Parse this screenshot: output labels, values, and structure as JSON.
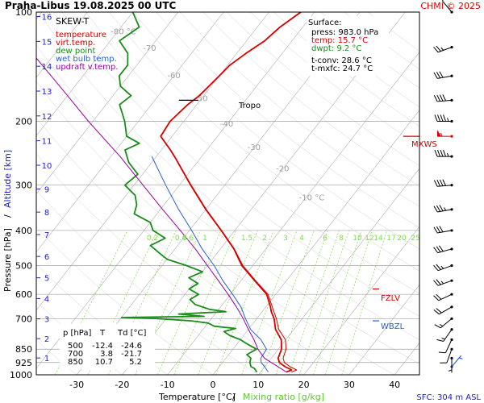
{
  "header": {
    "title": "Praha-Libus    19.08.2025 00 UTC",
    "copyright": "CHMI © 2025"
  },
  "colors": {
    "temperature": "#d40000",
    "dewpoint": "#1a8c1a",
    "wetbulb": "#2a60d0",
    "parcel": "#9a00a0",
    "mixing": "#7fdc4a",
    "isotherm": "#b0b0b0",
    "isobar": "#a0a0a0",
    "altitude": "#2020cc"
  },
  "legend": {
    "title": "SKEW-T",
    "items": [
      {
        "label": "temperature",
        "color": "#d40000"
      },
      {
        "label": "virt.temp.",
        "color": "#d40000"
      },
      {
        "label": "dew point",
        "color": "#1a8c1a"
      },
      {
        "label": "wet bulb temp.",
        "color": "#2a60d0"
      },
      {
        "label": "updraft v.temp.",
        "color": "#9a00a0"
      }
    ]
  },
  "surface": {
    "title": "Surface:",
    "lines": [
      {
        "text": "press: 983.0 hPa",
        "color": "#000000"
      },
      {
        "text": "temp: 15.7 °C",
        "color": "#d40000"
      },
      {
        "text": "dwpt: 9.2 °C",
        "color": "#1a8c1a"
      },
      {
        "text": "t-conv: 28.6 °C",
        "color": "#000000"
      },
      {
        "text": "t-mxfc: 24.7 °C",
        "color": "#000000"
      }
    ]
  },
  "table": {
    "headers": [
      "p [hPa]",
      "T",
      "Td [°C]"
    ],
    "rows": [
      [
        "500",
        "-12.4",
        "-24.6"
      ],
      [
        "700",
        "3.8",
        "-21.7"
      ],
      [
        "850",
        "10.7",
        "5.2"
      ]
    ]
  },
  "axes": {
    "x_label_main": "Temperature [°C]",
    "x_label_sep": "/",
    "x_label_mixing": "Mixing ratio [g/kg]",
    "y_label_main": "Pressure [hPa]",
    "y_label_sep": "/",
    "y_label_alt": "Altitude [km]",
    "sfc_note": "SFC: 304 m ASL",
    "tropo_label": "Tropo",
    "markers": {
      "mxws": "MXWS",
      "fzlv": "FZLV",
      "wbzl": "WBZL"
    }
  },
  "chart_data": {
    "type": "line",
    "title": "SKEW-T",
    "xlabel": "Temperature [°C] / Mixing ratio [g/kg]",
    "ylabel": "Pressure [hPa] / Altitude [km]",
    "xlim": [
      -40,
      45
    ],
    "pressure_range": [
      1000,
      100
    ],
    "pressure_ticks": [
      100,
      200,
      300,
      400,
      500,
      600,
      700,
      850,
      925,
      1000
    ],
    "temperature_ticks": [
      -30,
      -20,
      -10,
      0,
      10,
      20,
      30,
      40
    ],
    "altitude_ticks_km": [
      1,
      2,
      3,
      4,
      5,
      6,
      7,
      8,
      9,
      10,
      11,
      12,
      13,
      14,
      15,
      16
    ],
    "isotherm_labels": [
      {
        "t": -80,
        "label": "-80 °C"
      },
      {
        "t": -70,
        "label": "-70"
      },
      {
        "t": -60,
        "label": "-60"
      },
      {
        "t": -50,
        "label": "-50"
      },
      {
        "t": -40,
        "label": "-40"
      },
      {
        "t": -30,
        "label": "-30"
      },
      {
        "t": -20,
        "label": "-20"
      },
      {
        "t": -10,
        "label": "-10 °C"
      }
    ],
    "mixing_ratio_labels": [
      "0.2",
      "0.4",
      "0.6",
      "1",
      "1.5",
      "2",
      "3",
      "4",
      "6",
      "8",
      "10",
      "12",
      "14",
      "17",
      "20",
      "25"
    ],
    "mixing_ratio_values": [
      0.2,
      0.4,
      0.6,
      1,
      1.5,
      2,
      3,
      4,
      6,
      8,
      10,
      12,
      14,
      17,
      20,
      25
    ],
    "series": [
      {
        "key": "temperature",
        "points": [
          [
            983,
            15.7
          ],
          [
            970,
            16.5
          ],
          [
            950,
            14.5
          ],
          [
            925,
            12.5
          ],
          [
            900,
            11.5
          ],
          [
            850,
            10.7
          ],
          [
            800,
            9
          ],
          [
            750,
            6
          ],
          [
            700,
            3.8
          ],
          [
            670,
            2
          ],
          [
            650,
            1
          ],
          [
            600,
            -2
          ],
          [
            550,
            -7
          ],
          [
            500,
            -12.4
          ],
          [
            450,
            -17
          ],
          [
            400,
            -23
          ],
          [
            350,
            -30
          ],
          [
            300,
            -37.5
          ],
          [
            250,
            -46
          ],
          [
            240,
            -48
          ],
          [
            220,
            -52.5
          ],
          [
            200,
            -53
          ],
          [
            180,
            -52
          ],
          [
            170,
            -51
          ],
          [
            160,
            -50.5
          ],
          [
            150,
            -50
          ],
          [
            140,
            -49.5
          ],
          [
            130,
            -48
          ],
          [
            120,
            -46
          ],
          [
            110,
            -45
          ],
          [
            100,
            -43
          ]
        ]
      },
      {
        "key": "virtual",
        "points": [
          [
            983,
            16.8
          ],
          [
            970,
            17.6
          ],
          [
            950,
            15.6
          ],
          [
            925,
            13.6
          ],
          [
            900,
            12.6
          ],
          [
            850,
            11.7
          ],
          [
            800,
            9.9
          ],
          [
            750,
            6.7
          ],
          [
            700,
            4.3
          ],
          [
            650,
            1.4
          ],
          [
            600,
            -1.7
          ],
          [
            550,
            -6.8
          ],
          [
            500,
            -12.2
          ],
          [
            450,
            -16.9
          ],
          [
            400,
            -22.9
          ],
          [
            350,
            -29.9
          ],
          [
            300,
            -37.4
          ],
          [
            250,
            -46
          ]
        ]
      },
      {
        "key": "dewpoint",
        "points": [
          [
            983,
            9.2
          ],
          [
            960,
            8
          ],
          [
            950,
            7
          ],
          [
            925,
            6
          ],
          [
            900,
            5.5
          ],
          [
            880,
            4
          ],
          [
            850,
            5.2
          ],
          [
            820,
            2
          ],
          [
            800,
            0
          ],
          [
            780,
            -3
          ],
          [
            760,
            -5
          ],
          [
            745,
            -3
          ],
          [
            735,
            -8
          ],
          [
            720,
            -10
          ],
          [
            710,
            -14
          ],
          [
            700,
            -21.7
          ],
          [
            695,
            -30
          ],
          [
            690,
            -12
          ],
          [
            680,
            -18
          ],
          [
            670,
            -8
          ],
          [
            660,
            -12
          ],
          [
            640,
            -16
          ],
          [
            620,
            -18
          ],
          [
            600,
            -17
          ],
          [
            580,
            -20
          ],
          [
            560,
            -19
          ],
          [
            540,
            -22
          ],
          [
            520,
            -20
          ],
          [
            500,
            -24.6
          ],
          [
            480,
            -30
          ],
          [
            460,
            -33
          ],
          [
            440,
            -36
          ],
          [
            420,
            -34
          ],
          [
            400,
            -38
          ],
          [
            380,
            -40
          ],
          [
            360,
            -45
          ],
          [
            340,
            -46
          ],
          [
            320,
            -48
          ],
          [
            300,
            -52
          ],
          [
            280,
            -51
          ],
          [
            260,
            -55
          ],
          [
            240,
            -58
          ],
          [
            230,
            -56
          ],
          [
            220,
            -60
          ],
          [
            200,
            -63
          ],
          [
            180,
            -67
          ],
          [
            170,
            -66
          ],
          [
            160,
            -70
          ],
          [
            150,
            -72
          ],
          [
            140,
            -72
          ],
          [
            130,
            -74
          ],
          [
            120,
            -78
          ],
          [
            110,
            -76
          ],
          [
            100,
            -80
          ]
        ]
      },
      {
        "key": "wetbulb",
        "points": [
          [
            983,
            11.7
          ],
          [
            950,
            10
          ],
          [
            925,
            8.5
          ],
          [
            900,
            7.7
          ],
          [
            850,
            7.4
          ],
          [
            800,
            4.5
          ],
          [
            750,
            0.5
          ],
          [
            700,
            -2.5
          ],
          [
            650,
            -5.5
          ],
          [
            600,
            -9.5
          ],
          [
            550,
            -14
          ],
          [
            500,
            -18.5
          ],
          [
            450,
            -24
          ],
          [
            400,
            -29.5
          ],
          [
            350,
            -36
          ],
          [
            300,
            -43
          ],
          [
            250,
            -51
          ]
        ]
      },
      {
        "key": "parcel",
        "points": [
          [
            983,
            15.7
          ],
          [
            900,
            8.5
          ],
          [
            850,
            5.5
          ],
          [
            800,
            3
          ],
          [
            750,
            0
          ],
          [
            700,
            -3
          ],
          [
            650,
            -6.5
          ],
          [
            600,
            -10.5
          ],
          [
            550,
            -15
          ],
          [
            500,
            -20
          ],
          [
            450,
            -25.5
          ],
          [
            400,
            -32
          ],
          [
            350,
            -39.5
          ],
          [
            300,
            -48
          ],
          [
            250,
            -58
          ],
          [
            200,
            -71
          ],
          [
            170,
            -80
          ],
          [
            150,
            -87
          ],
          [
            130,
            -95
          ]
        ]
      }
    ],
    "tropopause": {
      "p": 175
    },
    "levels": {
      "mxws_p": 220,
      "fzlv_p": 580,
      "wbzl_p": 710
    },
    "wind_barbs": [
      {
        "p": 950,
        "dir": 40,
        "kt": 5,
        "color": "#1040d0"
      },
      {
        "p": 900,
        "dir": 180,
        "kt": 5,
        "color": "#000000"
      },
      {
        "p": 850,
        "dir": 200,
        "kt": 10,
        "color": "#000000"
      },
      {
        "p": 800,
        "dir": 205,
        "kt": 10,
        "color": "#000000"
      },
      {
        "p": 750,
        "dir": 215,
        "kt": 15,
        "color": "#000000"
      },
      {
        "p": 700,
        "dir": 230,
        "kt": 15,
        "color": "#000000"
      },
      {
        "p": 650,
        "dir": 240,
        "kt": 20,
        "color": "#000000"
      },
      {
        "p": 600,
        "dir": 245,
        "kt": 20,
        "color": "#000000"
      },
      {
        "p": 550,
        "dir": 250,
        "kt": 25,
        "color": "#000000"
      },
      {
        "p": 500,
        "dir": 250,
        "kt": 25,
        "color": "#000000"
      },
      {
        "p": 450,
        "dir": 255,
        "kt": 30,
        "color": "#000000"
      },
      {
        "p": 400,
        "dir": 260,
        "kt": 30,
        "color": "#000000"
      },
      {
        "p": 350,
        "dir": 260,
        "kt": 35,
        "color": "#000000"
      },
      {
        "p": 300,
        "dir": 265,
        "kt": 40,
        "color": "#000000"
      },
      {
        "p": 250,
        "dir": 270,
        "kt": 45,
        "color": "#000000"
      },
      {
        "p": 220,
        "dir": 270,
        "kt": 55,
        "color": "#d40000"
      },
      {
        "p": 200,
        "dir": 270,
        "kt": 45,
        "color": "#000000"
      },
      {
        "p": 175,
        "dir": 265,
        "kt": 40,
        "color": "#000000"
      },
      {
        "p": 150,
        "dir": 260,
        "kt": 30,
        "color": "#000000"
      },
      {
        "p": 125,
        "dir": 250,
        "kt": 25,
        "color": "#000000"
      },
      {
        "p": 100,
        "dir": 320,
        "kt": 10,
        "color": "#000000"
      }
    ]
  }
}
